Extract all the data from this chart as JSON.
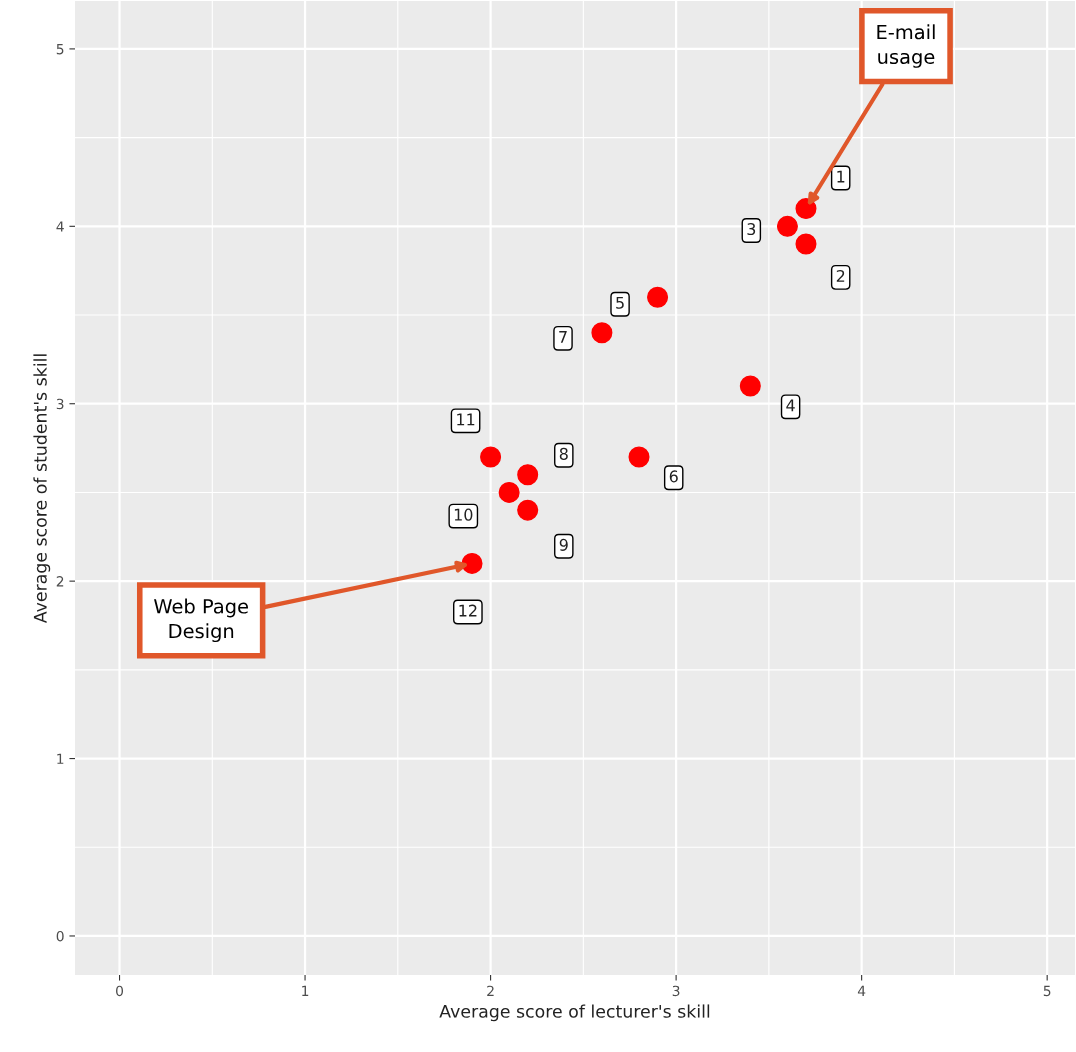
{
  "chart_data": {
    "type": "scatter",
    "xlabel": "Average score of lecturer's skill",
    "ylabel": "Average score of student's skill",
    "x": [
      3.7,
      3.7,
      3.6,
      3.4,
      2.9,
      2.8,
      2.6,
      2.2,
      2.2,
      2.1,
      2.0,
      1.9
    ],
    "series": [
      {
        "color": "#ff0000",
        "values": [
          4.1,
          3.9,
          4.0,
          3.1,
          3.6,
          2.7,
          3.4,
          2.6,
          2.4,
          2.5,
          2.7,
          2.1
        ]
      }
    ],
    "xlim": [
      -0.24,
      5.15
    ],
    "ylim": [
      -0.22,
      5.27
    ],
    "xticks": [
      0,
      1,
      2,
      3,
      4,
      5
    ],
    "yticks": [
      0,
      1,
      2,
      3,
      4,
      5
    ],
    "grid": true,
    "marker": "circle",
    "legend": false,
    "annotations": [
      {
        "text": "1",
        "x": 3.7,
        "y": 4.1
      },
      {
        "text": "2",
        "x": 3.7,
        "y": 3.9
      },
      {
        "text": "3",
        "x": 3.6,
        "y": 4.0
      },
      {
        "text": "4",
        "x": 3.4,
        "y": 3.1
      },
      {
        "text": "5",
        "x": 2.9,
        "y": 3.6
      },
      {
        "text": "6",
        "x": 2.8,
        "y": 2.7
      },
      {
        "text": "7",
        "x": 2.6,
        "y": 3.4
      },
      {
        "text": "8",
        "x": 2.2,
        "y": 2.6
      },
      {
        "text": "9",
        "x": 2.2,
        "y": 2.4
      },
      {
        "text": "10",
        "x": 2.1,
        "y": 2.5
      },
      {
        "text": "11",
        "x": 2.0,
        "y": 2.7
      },
      {
        "text": "12",
        "x": 1.9,
        "y": 2.1
      },
      {
        "text": "E-mail\nusage",
        "x": 3.7,
        "y": 4.1
      },
      {
        "text": "Web Page\nDesign",
        "x": 1.9,
        "y": 2.1
      }
    ]
  }
}
